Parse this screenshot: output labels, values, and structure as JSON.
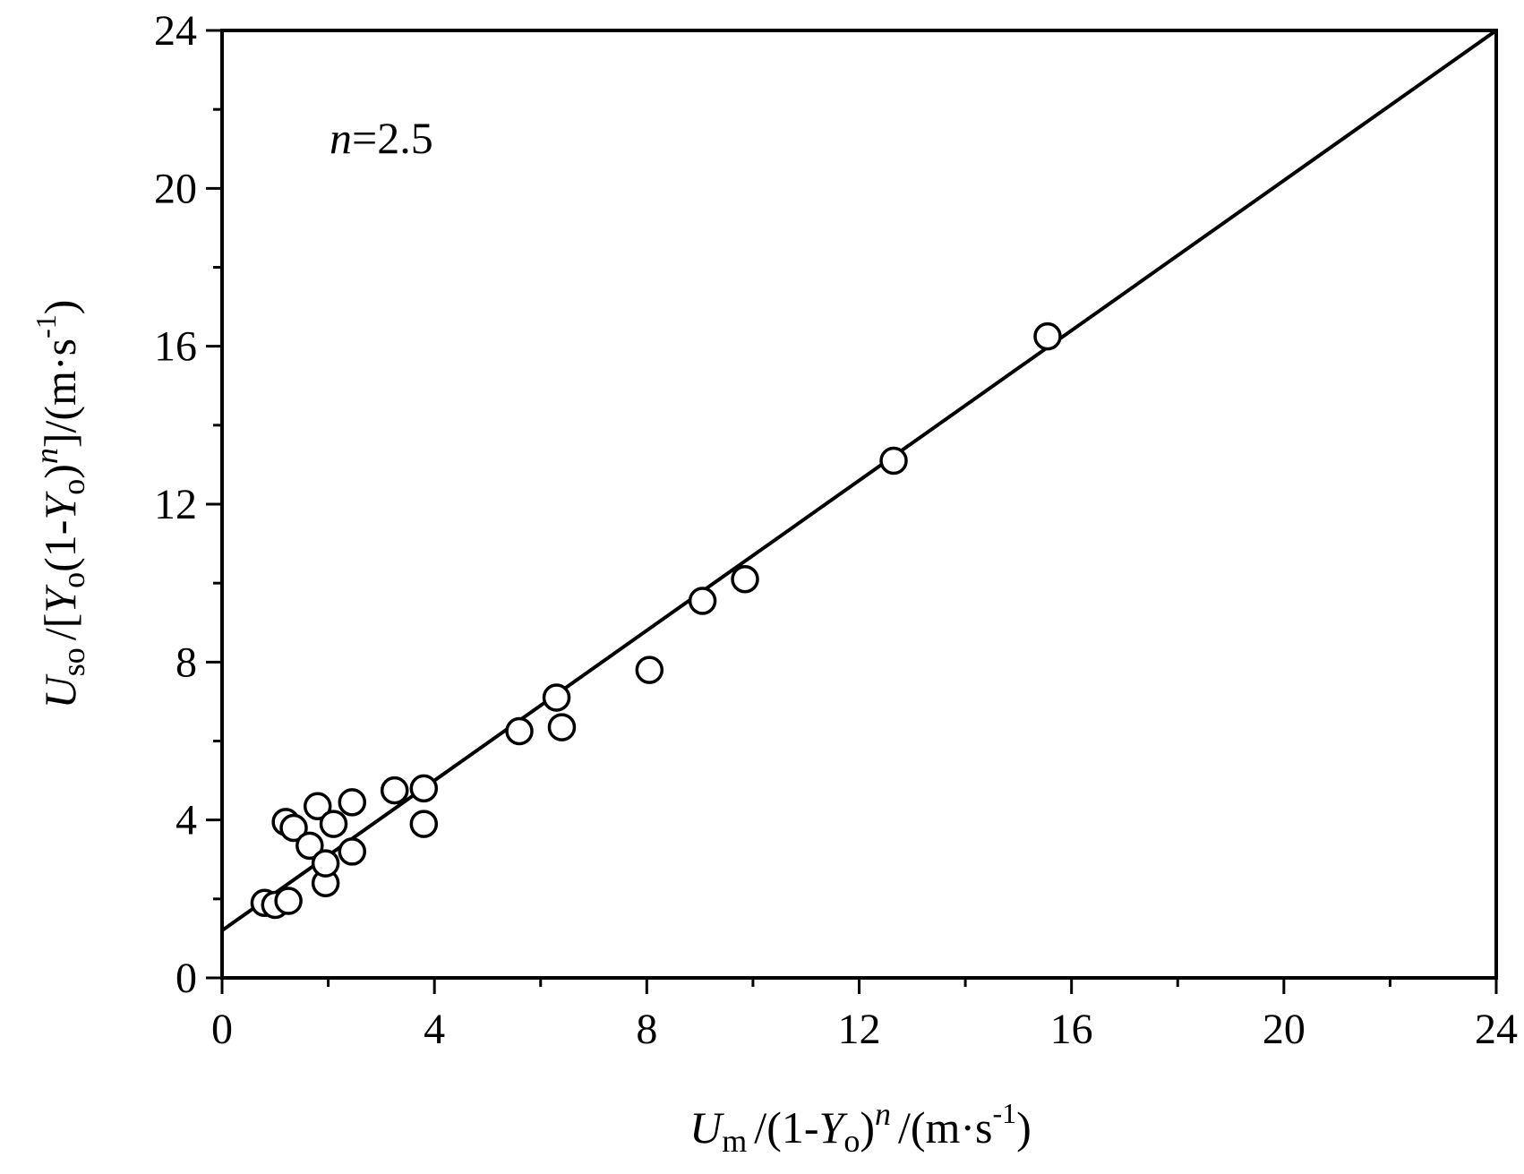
{
  "chart_data": {
    "type": "scatter",
    "annotation": {
      "var": "n",
      "value": "=2.5"
    },
    "xlabel": {
      "main": "U",
      "sub": "m",
      "mid": "/(1-",
      "var2": "Y",
      "sub2": "o",
      "close": ")",
      "sup": "n",
      "unit_pre": "/(m·s",
      "unit_sup": "-1",
      "unit_post": ")"
    },
    "ylabel": {
      "main": "U",
      "sub": "so",
      "mid": "/[",
      "var2": "Y",
      "sub2": "o",
      "mid2": "(1-",
      "var3": "Y",
      "sub3": "o",
      "close": ")",
      "sup": "n",
      "unit_pre": "]/(m·s",
      "unit_sup": "-1",
      "unit_post": ")"
    },
    "xlim": [
      0,
      24
    ],
    "ylim": [
      0,
      24
    ],
    "xticks": [
      0,
      4,
      8,
      12,
      16,
      20,
      24
    ],
    "yticks": [
      0,
      4,
      8,
      12,
      16,
      20,
      24
    ],
    "xtick_labels": [
      "0",
      "4",
      "8",
      "12",
      "16",
      "20",
      "24"
    ],
    "ytick_labels": [
      "0",
      "4",
      "8",
      "12",
      "16",
      "20",
      "24"
    ],
    "grid": false,
    "marker": "open-circle",
    "points": [
      {
        "x": 0.8,
        "y": 1.9
      },
      {
        "x": 1.0,
        "y": 1.85
      },
      {
        "x": 1.25,
        "y": 1.95
      },
      {
        "x": 1.2,
        "y": 3.95
      },
      {
        "x": 1.35,
        "y": 3.8
      },
      {
        "x": 1.65,
        "y": 3.35
      },
      {
        "x": 1.8,
        "y": 4.35
      },
      {
        "x": 1.95,
        "y": 2.4
      },
      {
        "x": 1.95,
        "y": 2.9
      },
      {
        "x": 2.1,
        "y": 3.9
      },
      {
        "x": 2.45,
        "y": 4.45
      },
      {
        "x": 2.45,
        "y": 3.2
      },
      {
        "x": 3.25,
        "y": 4.75
      },
      {
        "x": 3.8,
        "y": 4.8
      },
      {
        "x": 3.8,
        "y": 3.9
      },
      {
        "x": 5.6,
        "y": 6.25
      },
      {
        "x": 6.3,
        "y": 7.1
      },
      {
        "x": 6.4,
        "y": 6.35
      },
      {
        "x": 8.05,
        "y": 7.8
      },
      {
        "x": 9.05,
        "y": 9.55
      },
      {
        "x": 9.85,
        "y": 10.1
      },
      {
        "x": 12.65,
        "y": 13.1
      },
      {
        "x": 15.55,
        "y": 16.25
      }
    ],
    "fit_line": {
      "x": [
        0,
        24
      ],
      "y": [
        1.2,
        24
      ]
    }
  }
}
